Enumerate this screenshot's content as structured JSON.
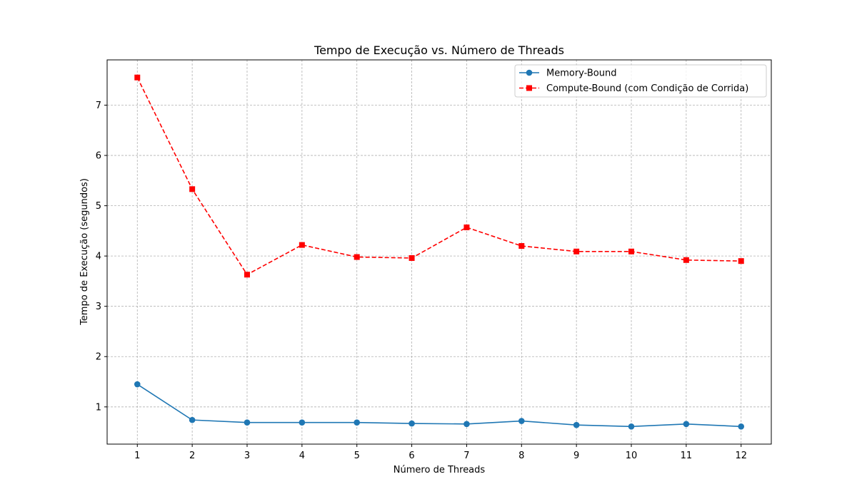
{
  "chart_data": {
    "type": "line",
    "title": "Tempo de Execução vs. Número de Threads",
    "xlabel": "Número de Threads",
    "ylabel": "Tempo de Execução (segundos)",
    "x": [
      1,
      2,
      3,
      4,
      5,
      6,
      7,
      8,
      9,
      10,
      11,
      12
    ],
    "x_ticks": [
      "1",
      "2",
      "3",
      "4",
      "5",
      "6",
      "7",
      "8",
      "9",
      "10",
      "11",
      "12"
    ],
    "y_ticks": [
      "1",
      "2",
      "3",
      "4",
      "5",
      "6",
      "7"
    ],
    "xlim": [
      0.45,
      12.55
    ],
    "ylim": [
      0.26,
      7.9
    ],
    "grid": true,
    "legend_position": "top-right",
    "series": [
      {
        "name": "Memory-Bound",
        "color": "#1f77b4",
        "line_style": "solid",
        "marker": "circle",
        "values": [
          1.45,
          0.74,
          0.69,
          0.69,
          0.69,
          0.67,
          0.66,
          0.72,
          0.64,
          0.61,
          0.66,
          0.61
        ]
      },
      {
        "name": "Compute-Bound (com Condição de Corrida)",
        "color": "#ff0000",
        "line_style": "dashed",
        "marker": "square",
        "values": [
          7.55,
          5.33,
          3.63,
          4.22,
          3.98,
          3.96,
          4.57,
          4.2,
          4.09,
          4.09,
          3.92,
          3.9
        ]
      }
    ]
  }
}
